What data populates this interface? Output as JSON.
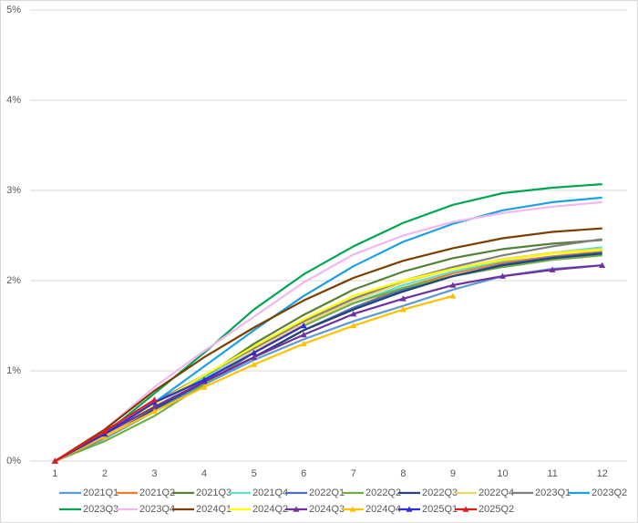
{
  "chart_data": {
    "type": "line",
    "categories": [
      "1",
      "2",
      "3",
      "4",
      "5",
      "6",
      "7",
      "8",
      "9",
      "10",
      "11",
      "12"
    ],
    "ylim": [
      0,
      5
    ],
    "yticks": [
      {
        "value": 0,
        "label": "0%"
      },
      {
        "value": 1,
        "label": "1%"
      },
      {
        "value": 2,
        "label": "2%"
      },
      {
        "value": 3,
        "label": "3%"
      },
      {
        "value": 4,
        "label": "4%"
      },
      {
        "value": 5,
        "label": "5%"
      }
    ],
    "grid": true,
    "legend": "bottom",
    "series": [
      {
        "name": "2021Q1",
        "color": "#5b9bd5",
        "values": [
          0,
          0.25,
          0.55,
          0.85,
          1.12,
          1.35,
          1.55,
          1.72,
          1.9,
          2.05,
          2.13,
          2.17
        ]
      },
      {
        "name": "2021Q2",
        "color": "#ed7d31",
        "values": [
          0,
          0.27,
          0.58,
          0.88,
          1.15,
          1.45,
          1.7,
          1.92,
          2.08,
          2.2,
          2.27,
          2.32
        ]
      },
      {
        "name": "2021Q3",
        "color": "#548235",
        "values": [
          0,
          0.28,
          0.58,
          0.93,
          1.3,
          1.62,
          1.9,
          2.1,
          2.25,
          2.35,
          2.41,
          2.45
        ]
      },
      {
        "name": "2021Q4",
        "color": "#5fe0d0",
        "values": [
          0,
          0.28,
          0.6,
          0.92,
          1.22,
          1.5,
          1.75,
          1.95,
          2.1,
          2.22,
          2.31,
          2.37
        ]
      },
      {
        "name": "2022Q1",
        "color": "#4472c4",
        "values": [
          0,
          0.27,
          0.57,
          0.87,
          1.15,
          1.45,
          1.7,
          1.9,
          2.05,
          2.18,
          2.26,
          2.31
        ]
      },
      {
        "name": "2022Q2",
        "color": "#70ad47",
        "values": [
          0,
          0.22,
          0.5,
          0.85,
          1.2,
          1.5,
          1.75,
          1.92,
          2.05,
          2.15,
          2.23,
          2.28
        ]
      },
      {
        "name": "2022Q3",
        "color": "#264478",
        "values": [
          0,
          0.27,
          0.58,
          0.88,
          1.15,
          1.45,
          1.68,
          1.88,
          2.05,
          2.17,
          2.25,
          2.3
        ]
      },
      {
        "name": "2022Q4",
        "color": "#f2d46b",
        "values": [
          0,
          0.28,
          0.6,
          0.9,
          1.22,
          1.52,
          1.78,
          1.98,
          2.13,
          2.24,
          2.31,
          2.35
        ]
      },
      {
        "name": "2023Q1",
        "color": "#7f7f7f",
        "values": [
          0,
          0.3,
          0.65,
          0.95,
          1.25,
          1.55,
          1.8,
          2.0,
          2.15,
          2.28,
          2.38,
          2.46
        ]
      },
      {
        "name": "2023Q2",
        "color": "#1ba1e2",
        "values": [
          0,
          0.3,
          0.65,
          1.05,
          1.45,
          1.83,
          2.16,
          2.43,
          2.63,
          2.78,
          2.87,
          2.92
        ]
      },
      {
        "name": "2023Q3",
        "color": "#00a651",
        "values": [
          0,
          0.3,
          0.75,
          1.2,
          1.68,
          2.07,
          2.38,
          2.64,
          2.84,
          2.97,
          3.03,
          3.07
        ]
      },
      {
        "name": "2023Q4",
        "color": "#f4b6f0",
        "values": [
          0,
          0.35,
          0.82,
          1.22,
          1.6,
          1.98,
          2.29,
          2.5,
          2.65,
          2.75,
          2.82,
          2.87
        ]
      },
      {
        "name": "2024Q1",
        "color": "#7b3f00",
        "values": [
          0,
          0.35,
          0.78,
          1.15,
          1.48,
          1.78,
          2.03,
          2.22,
          2.36,
          2.47,
          2.54,
          2.58
        ]
      },
      {
        "name": "2024Q2",
        "color": "#ffff00",
        "values": [
          0,
          0.3,
          0.63,
          0.95,
          1.27,
          1.57,
          1.83,
          2.0,
          2.13,
          2.23,
          2.3,
          2.34
        ]
      },
      {
        "name": "2024Q3",
        "color": "#7030a0",
        "marker": "triangle",
        "values": [
          0,
          0.3,
          0.6,
          0.88,
          1.15,
          1.4,
          1.63,
          1.8,
          1.95,
          2.05,
          2.12,
          2.17
        ]
      },
      {
        "name": "2024Q4",
        "color": "#ffc000",
        "marker": "triangle",
        "values": [
          0,
          0.27,
          0.55,
          0.82,
          1.07,
          1.3,
          1.5,
          1.68,
          1.83,
          null,
          null,
          null
        ]
      },
      {
        "name": "2025Q1",
        "color": "#2e2ed8",
        "marker": "triangle",
        "values": [
          0,
          0.3,
          0.65,
          0.9,
          1.2,
          1.5,
          null,
          null,
          null,
          null,
          null,
          null
        ]
      },
      {
        "name": "2025Q2",
        "color": "#e31a1c",
        "marker": "triangle",
        "values": [
          0,
          0.33,
          0.68,
          null,
          null,
          null,
          null,
          null,
          null,
          null,
          null,
          null
        ]
      }
    ]
  }
}
